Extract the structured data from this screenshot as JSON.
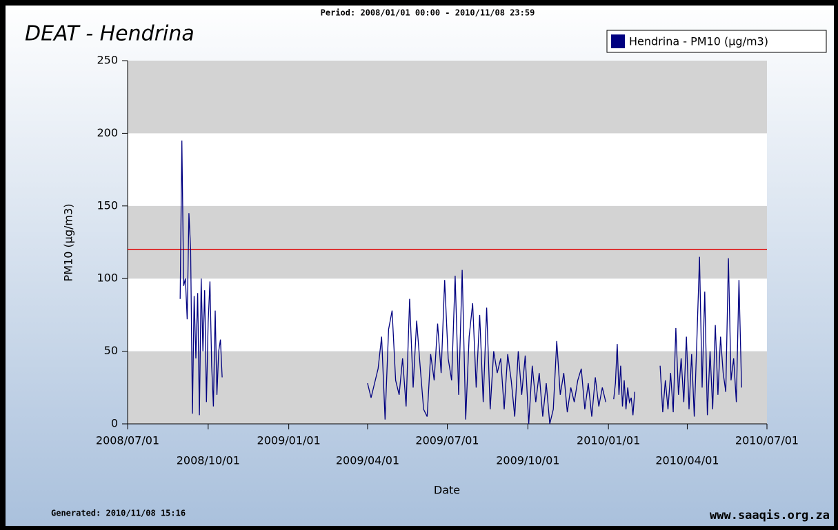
{
  "chart_data": {
    "type": "line",
    "title": "DEAT - Hendrina",
    "subtitle": "Period: 2008/01/01 00:00 - 2010/11/08 23:59",
    "footer_left": "Generated: 2010/11/08 15:16",
    "footer_right": "www.saaqis.org.za",
    "x_label": "Date",
    "y_label": "PM10 (µg/m3)",
    "xlim": [
      "2008/07/01",
      "2010/07/01"
    ],
    "xticks": [
      "2008/07/01",
      "2008/10/01",
      "2009/01/01",
      "2009/04/01",
      "2009/07/01",
      "2009/10/01",
      "2010/01/01",
      "2010/04/01",
      "2010/07/01"
    ],
    "ylim": [
      0,
      250
    ],
    "yticks": [
      0,
      50,
      100,
      150,
      200,
      250
    ],
    "bands": true,
    "reference_line": {
      "value": 120,
      "color": "#e00000"
    },
    "legend": "top-right",
    "x": [
      "2008/08/30",
      "2008/09/01",
      "2008/09/03",
      "2008/09/05",
      "2008/09/07",
      "2008/09/09",
      "2008/09/11",
      "2008/09/13",
      "2008/09/15",
      "2008/09/17",
      "2008/09/19",
      "2008/09/21",
      "2008/09/23",
      "2008/09/25",
      "2008/09/27",
      "2008/09/29",
      "2008/10/01",
      "2008/10/03",
      "2008/10/05",
      "2008/10/07",
      "2008/10/09",
      "2008/10/11",
      "2008/10/13",
      "2008/10/15",
      "2008/10/17",
      "2009/01/01",
      "2009/04/01",
      "2009/04/05",
      "2009/04/09",
      "2009/04/13",
      "2009/04/17",
      "2009/04/21",
      "2009/04/25",
      "2009/04/29",
      "2009/05/03",
      "2009/05/07",
      "2009/05/11",
      "2009/05/15",
      "2009/05/19",
      "2009/05/23",
      "2009/05/27",
      "2009/05/31",
      "2009/06/04",
      "2009/06/08",
      "2009/06/12",
      "2009/06/16",
      "2009/06/20",
      "2009/06/24",
      "2009/06/28",
      "2009/07/02",
      "2009/07/06",
      "2009/07/10",
      "2009/07/14",
      "2009/07/18",
      "2009/07/22",
      "2009/07/26",
      "2009/07/30",
      "2009/08/03",
      "2009/08/07",
      "2009/08/11",
      "2009/08/15",
      "2009/08/19",
      "2009/08/23",
      "2009/08/27",
      "2009/08/31",
      "2009/09/04",
      "2009/09/08",
      "2009/09/12",
      "2009/09/16",
      "2009/09/20",
      "2009/09/24",
      "2009/09/28",
      "2009/10/02",
      "2009/10/06",
      "2009/10/10",
      "2009/10/14",
      "2009/10/18",
      "2009/10/22",
      "2009/10/26",
      "2009/10/30",
      "2009/11/03",
      "2009/11/07",
      "2009/11/11",
      "2009/11/15",
      "2009/11/19",
      "2009/11/23",
      "2009/11/27",
      "2009/12/01",
      "2009/12/05",
      "2009/12/09",
      "2009/12/13",
      "2009/12/17",
      "2009/12/21",
      "2009/12/25",
      "2009/12/29",
      "2010/01/03",
      "2010/01/07",
      "2010/01/09",
      "2010/01/11",
      "2010/01/13",
      "2010/01/15",
      "2010/01/17",
      "2010/01/19",
      "2010/01/21",
      "2010/01/23",
      "2010/01/25",
      "2010/01/27",
      "2010/01/29",
      "2010/01/31",
      "2010/02/15",
      "2010/03/01",
      "2010/03/04",
      "2010/03/07",
      "2010/03/10",
      "2010/03/13",
      "2010/03/16",
      "2010/03/19",
      "2010/03/22",
      "2010/03/25",
      "2010/03/28",
      "2010/03/31",
      "2010/04/03",
      "2010/04/06",
      "2010/04/09",
      "2010/04/12",
      "2010/04/15",
      "2010/04/18",
      "2010/04/21",
      "2010/04/24",
      "2010/04/27",
      "2010/04/30",
      "2010/05/03",
      "2010/05/06",
      "2010/05/09",
      "2010/05/12",
      "2010/05/15",
      "2010/05/18",
      "2010/05/21",
      "2010/05/24",
      "2010/05/27",
      "2010/05/30",
      "2010/06/02"
    ],
    "series": [
      {
        "name": "Hendrina - PM10 (µg/m3)",
        "color": "#000080",
        "values": [
          86,
          195,
          95,
          100,
          72,
          145,
          120,
          7,
          88,
          45,
          90,
          6,
          100,
          50,
          92,
          15,
          70,
          98,
          40,
          12,
          78,
          20,
          50,
          58,
          32,
          null,
          28,
          18,
          28,
          38,
          60,
          3,
          65,
          78,
          30,
          20,
          45,
          12,
          86,
          25,
          71,
          40,
          10,
          5,
          48,
          30,
          69,
          35,
          99,
          45,
          30,
          102,
          20,
          106,
          3,
          60,
          83,
          25,
          75,
          15,
          80,
          10,
          50,
          35,
          45,
          10,
          48,
          30,
          5,
          50,
          20,
          47,
          0,
          40,
          15,
          35,
          5,
          28,
          0,
          10,
          57,
          20,
          35,
          8,
          25,
          15,
          30,
          38,
          10,
          28,
          5,
          32,
          12,
          25,
          15,
          null,
          17,
          28,
          55,
          20,
          40,
          12,
          30,
          10,
          25,
          15,
          18,
          6,
          22,
          null,
          40,
          8,
          30,
          10,
          35,
          8,
          66,
          20,
          45,
          15,
          60,
          10,
          48,
          5,
          58,
          115,
          25,
          91,
          6,
          50,
          10,
          68,
          20,
          60,
          35,
          22,
          114,
          30,
          45,
          15,
          99,
          25
        ]
      }
    ]
  }
}
